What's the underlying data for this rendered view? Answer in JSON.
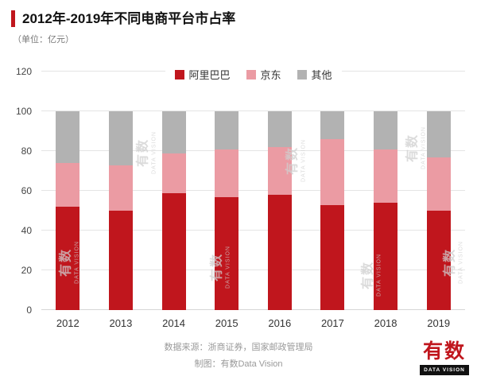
{
  "header": {
    "title": "2012年-2019年不同电商平台市占率",
    "subtitle": "（单位：亿元）"
  },
  "chart_data": {
    "type": "bar",
    "stacked": true,
    "title": "2012年-2019年不同电商平台市占率",
    "unit": "亿元",
    "categories": [
      "2012",
      "2013",
      "2014",
      "2015",
      "2016",
      "2017",
      "2018",
      "2019"
    ],
    "series": [
      {
        "name": "阿里巴巴",
        "color": "#c0161d",
        "values": [
          52,
          50,
          59,
          57,
          58,
          53,
          54,
          50
        ]
      },
      {
        "name": "京东",
        "color": "#eb9ba3",
        "values": [
          22,
          23,
          20,
          24,
          24,
          33,
          27,
          27
        ]
      },
      {
        "name": "其他",
        "color": "#b2b2b2",
        "values": [
          26,
          27,
          21,
          19,
          18,
          14,
          19,
          23
        ]
      }
    ],
    "ylim": [
      0,
      120
    ],
    "ytick_step": 20,
    "grid": true,
    "legend_position": "top-center"
  },
  "footer": {
    "source": "数据来源：浙商证券，国家邮政管理局",
    "credit": "制图：有数Data Vision"
  },
  "watermark": {
    "line1": "有数",
    "line2": "DATA VISION"
  },
  "logo": {
    "name": "有数",
    "caption": "DATA VISION"
  },
  "colors": {
    "accent": "#c0161d",
    "alibaba": "#c0161d",
    "jd": "#eb9ba3",
    "other": "#b2b2b2"
  }
}
